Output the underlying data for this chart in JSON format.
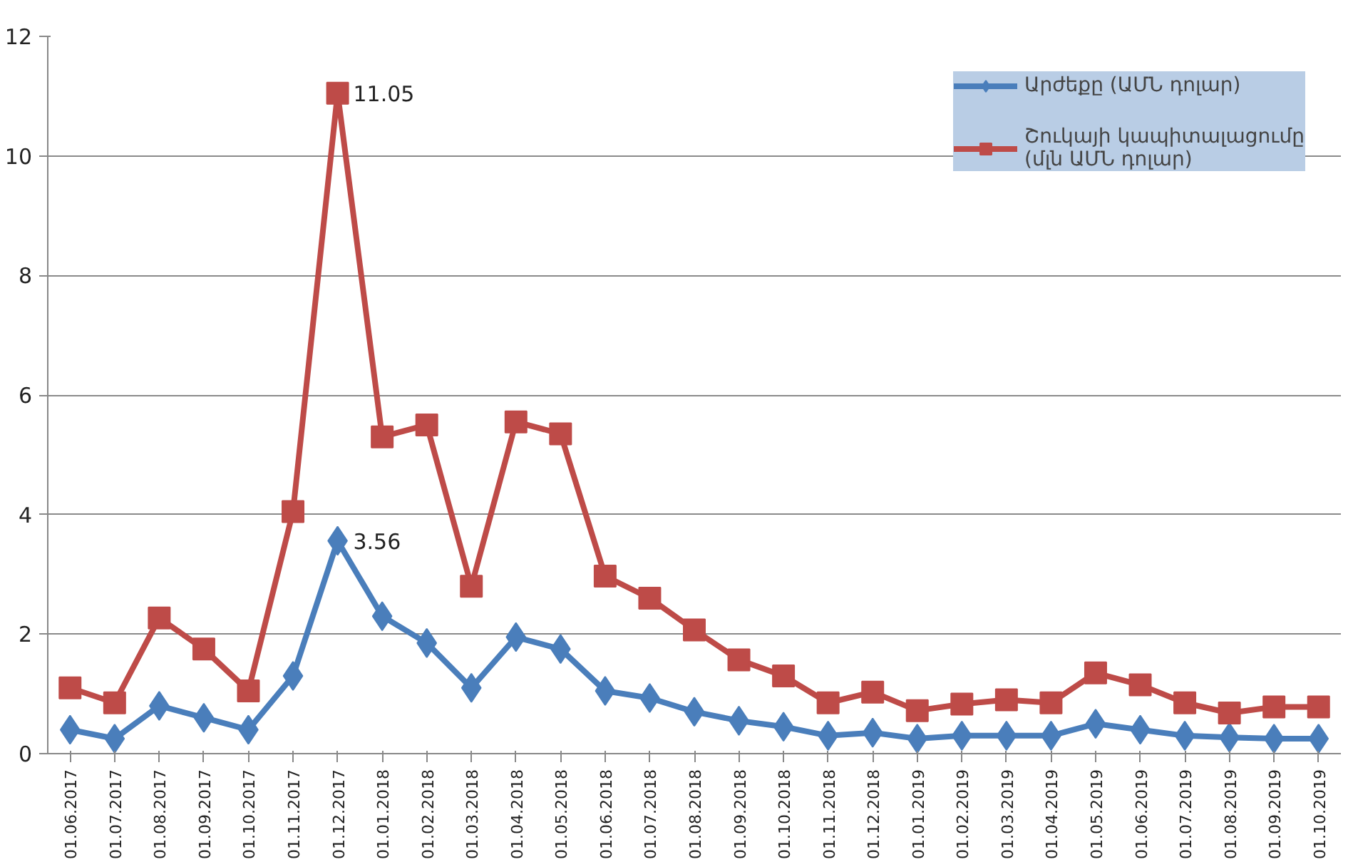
{
  "chart_data": {
    "type": "line",
    "categories": [
      "01.06.2017",
      "01.07.2017",
      "01.08.2017",
      "01.09.2017",
      "01.10.2017",
      "01.11.2017",
      "01.12.2017",
      "01.01.2018",
      "01.02.2018",
      "01.03.2018",
      "01.04.2018",
      "01.05.2018",
      "01.06.2018",
      "01.07.2018",
      "01.08.2018",
      "01.09.2018",
      "01.10.2018",
      "01.11.2018",
      "01.12.2018",
      "01.01.2019",
      "01.02.2019",
      "01.03.2019",
      "01.04.2019",
      "01.05.2019",
      "01.06.2019",
      "01.07.2019",
      "01.08.2019",
      "01.09.2019",
      "01.10.2019"
    ],
    "series": [
      {
        "name": "Արժեքը (ԱՄՆ դոլար)",
        "color": "#4a7ebb",
        "marker": "diamond",
        "values": [
          0.4,
          0.25,
          0.8,
          0.6,
          0.4,
          1.3,
          3.56,
          2.3,
          1.85,
          1.1,
          1.95,
          1.75,
          1.05,
          0.93,
          0.7,
          0.55,
          0.45,
          0.3,
          0.35,
          0.25,
          0.3,
          0.3,
          0.3,
          0.5,
          0.4,
          0.3,
          0.27,
          0.25,
          0.25
        ]
      },
      {
        "name": "Շուկայի կապիտալացումը\n(մլն ԱՄՆ դոլար)",
        "color": "#be4b48",
        "marker": "square",
        "values": [
          1.1,
          0.85,
          2.27,
          1.75,
          1.05,
          4.05,
          11.05,
          5.3,
          5.5,
          2.8,
          5.55,
          5.35,
          2.97,
          2.6,
          2.07,
          1.57,
          1.3,
          0.85,
          1.03,
          0.72,
          0.83,
          0.9,
          0.85,
          1.35,
          1.15,
          0.85,
          0.68,
          0.78,
          0.78
        ]
      }
    ],
    "annotations": [
      {
        "text": "3.56",
        "x": "01.12.2017",
        "y": 3.56
      },
      {
        "text": "11.05",
        "x": "01.12.2017",
        "y": 11.05
      }
    ],
    "ylim": [
      0,
      12
    ],
    "yticks": [
      0,
      2,
      4,
      6,
      8,
      10,
      12
    ],
    "grid": "y",
    "legend": "top right",
    "line_style": "solid"
  }
}
